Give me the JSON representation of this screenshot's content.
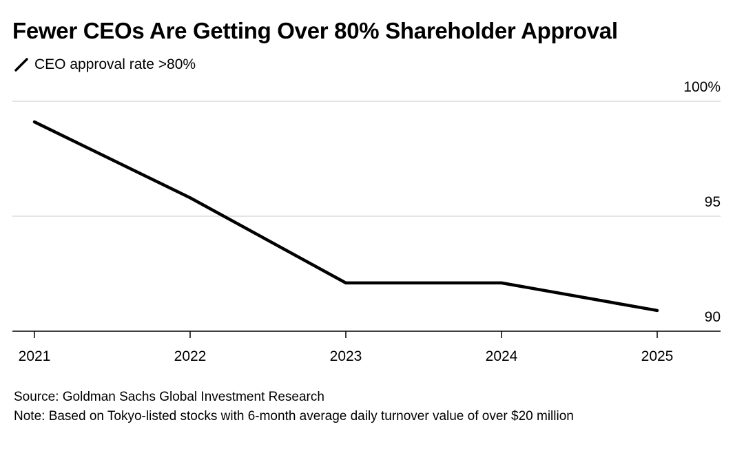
{
  "chart_data": {
    "type": "line",
    "title": "Fewer CEOs Are Getting Over 80% Shareholder Approval",
    "legend": "CEO approval rate >80%",
    "x": [
      "2021",
      "2022",
      "2023",
      "2024",
      "2025"
    ],
    "series": [
      {
        "name": "CEO approval rate >80%",
        "values": [
          99.1,
          95.8,
          92.1,
          92.1,
          90.9
        ],
        "color": "#000000"
      }
    ],
    "y_ticks": [
      100,
      95,
      90
    ],
    "y_tick_labels": [
      "100%",
      "95",
      "90"
    ],
    "ylim": [
      89,
      100
    ],
    "y_axis_side": "right",
    "grid": true,
    "source": "Source: Goldman Sachs Global Investment Research",
    "note": "Note: Based on Tokyo-listed stocks with 6-month average daily turnover value of over $20 million"
  }
}
